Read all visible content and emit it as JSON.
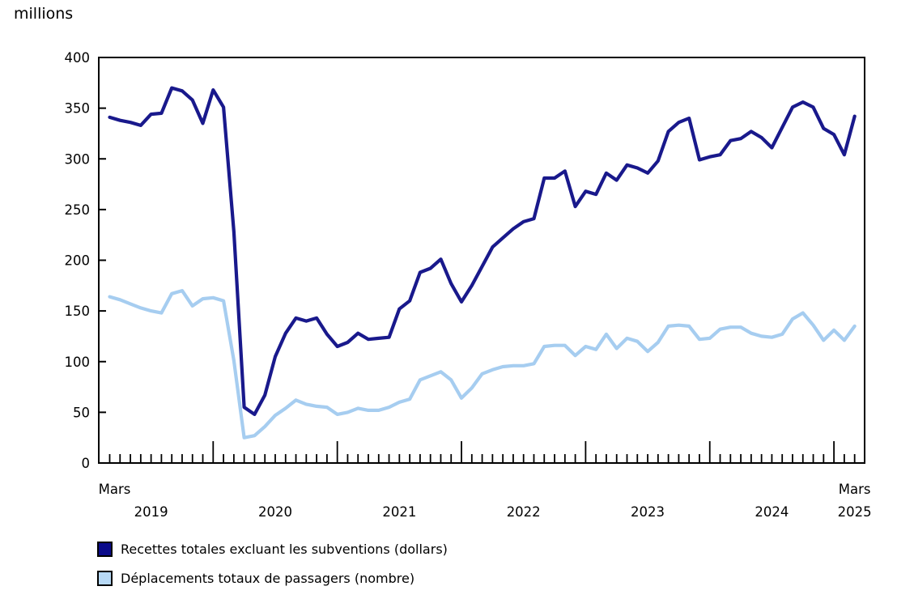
{
  "chart_data": {
    "type": "line",
    "y_axis_title": "millions",
    "y_axis": {
      "min": 0,
      "max": 400,
      "step": 50,
      "tick_labels": [
        "0",
        "50",
        "100",
        "150",
        "200",
        "250",
        "300",
        "350",
        "400"
      ]
    },
    "x_domain": {
      "start": "2019-03",
      "end": "2025-03",
      "first_tick_label": "Mars",
      "last_tick_label": "Mars",
      "year_labels": [
        "2019",
        "2020",
        "2021",
        "2022",
        "2023",
        "2024"
      ],
      "end_year_label": "2025",
      "months_per_tick": 1
    },
    "series": [
      {
        "name": "Recettes totales excluant les subventions (dollars)",
        "color": "#19198c",
        "legend_fill": "#0b0b8a",
        "values": [
          341,
          338,
          336,
          333,
          344,
          345,
          370,
          367,
          358,
          335,
          368,
          351,
          228,
          55,
          48,
          67,
          105,
          128,
          143,
          140,
          143,
          127,
          115,
          119,
          128,
          122,
          123,
          124,
          152,
          160,
          188,
          192,
          201,
          177,
          159,
          175,
          194,
          213,
          222,
          231,
          238,
          241,
          281,
          281,
          288,
          253,
          268,
          265,
          286,
          279,
          294,
          291,
          286,
          298,
          327,
          336,
          340,
          299,
          302,
          304,
          318,
          320,
          327,
          321,
          311,
          331,
          351,
          356,
          351,
          330,
          324,
          304,
          342
        ]
      },
      {
        "name": "Déplacements totaux de passagers (nombre)",
        "color": "#a6cdf0",
        "legend_fill": "#b7d9f6",
        "values": [
          164,
          161,
          157,
          153,
          150,
          148,
          167,
          170,
          155,
          162,
          163,
          160,
          101,
          25,
          27,
          36,
          47,
          54,
          62,
          58,
          56,
          55,
          48,
          50,
          54,
          52,
          52,
          55,
          60,
          63,
          82,
          86,
          90,
          82,
          64,
          74,
          88,
          92,
          95,
          96,
          96,
          98,
          115,
          116,
          116,
          106,
          115,
          112,
          127,
          113,
          123,
          120,
          110,
          119,
          135,
          136,
          135,
          122,
          123,
          132,
          134,
          134,
          128,
          125,
          124,
          127,
          142,
          148,
          136,
          121,
          131,
          121,
          135
        ]
      }
    ],
    "grid": false,
    "legend_position": "bottom-left"
  },
  "legend": {
    "items": [
      {
        "label": "Recettes totales excluant les subventions (dollars)"
      },
      {
        "label": "Déplacements totaux de passagers (nombre)"
      }
    ]
  }
}
